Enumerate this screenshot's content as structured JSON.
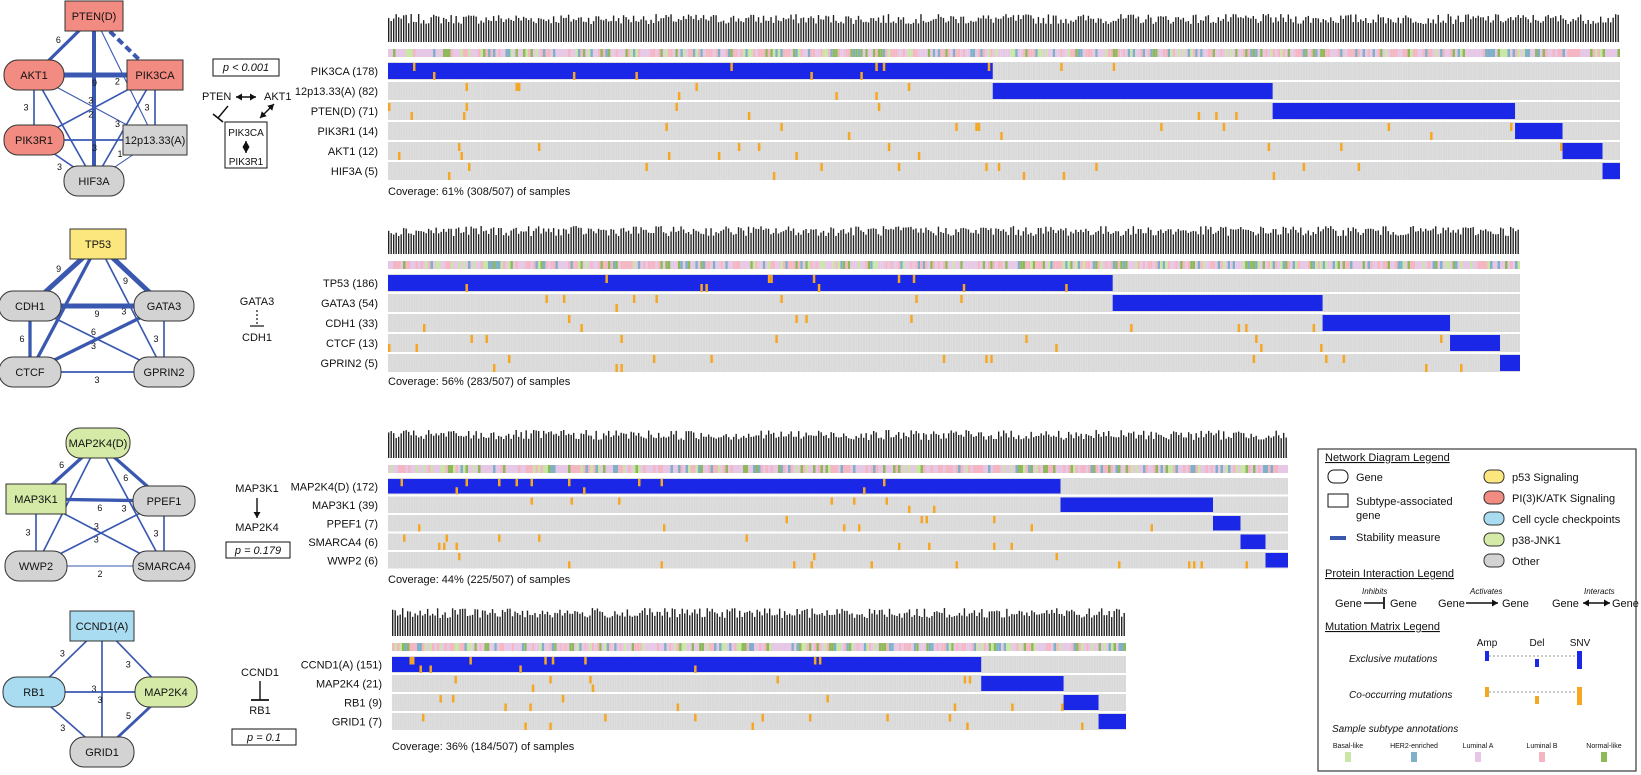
{
  "colors": {
    "blue": "#1b27e6",
    "orange": "#f5a623",
    "grey_cell": "#d9d9d9",
    "edge": "#3a58b0",
    "p53": "#fbe77e",
    "pi3k": "#f28b82",
    "cellcycle": "#a9dcf0",
    "jnk": "#d4eaa6",
    "other": "#d3d3d3",
    "basal": "#c9e6a6",
    "her2": "#7fb0c8",
    "luma": "#e6c8e6",
    "lumb": "#f4b6c2",
    "normal": "#8fb85a"
  },
  "modules": [
    {
      "network": {
        "nodes": [
          {
            "id": "PTEN(D)",
            "label": "PTEN(D)",
            "shape": "rect",
            "color": "pi3k"
          },
          {
            "id": "AKT1",
            "label": "AKT1",
            "shape": "round",
            "color": "pi3k"
          },
          {
            "id": "PIK3CA",
            "label": "PIK3CA",
            "shape": "rect",
            "color": "pi3k"
          },
          {
            "id": "PIK3R1",
            "label": "PIK3R1",
            "shape": "round",
            "color": "pi3k"
          },
          {
            "id": "12p13.33(A)",
            "label": "12p13.33(A)",
            "shape": "rect",
            "color": "other"
          },
          {
            "id": "HIF3A",
            "label": "HIF3A",
            "shape": "round",
            "color": "other"
          }
        ],
        "edges": [
          {
            "a": "PTEN(D)",
            "b": "AKT1",
            "w": "6"
          },
          {
            "a": "PTEN(D)",
            "b": "PIK3CA",
            "w": "",
            "dashed": true
          },
          {
            "a": "PTEN(D)",
            "b": "12p13.33(A)",
            "w": "2"
          },
          {
            "a": "PTEN(D)",
            "b": "HIF3A",
            "w": ""
          },
          {
            "a": "AKT1",
            "b": "PIK3CA",
            "w": "9"
          },
          {
            "a": "AKT1",
            "b": "PIK3R1",
            "w": "3"
          },
          {
            "a": "AKT1",
            "b": "12p13.33(A)",
            "w": "2"
          },
          {
            "a": "AKT1",
            "b": "HIF3A",
            "w": "3"
          },
          {
            "a": "PIK3CA",
            "b": "PIK3R1",
            "w": "3"
          },
          {
            "a": "PIK3CA",
            "b": "12p13.33(A)",
            "w": "3"
          },
          {
            "a": "PIK3CA",
            "b": "HIF3A",
            "w": "3"
          },
          {
            "a": "PIK3R1",
            "b": "12p13.33(A)",
            "w": "3"
          },
          {
            "a": "PIK3R1",
            "b": "HIF3A",
            "w": "3"
          },
          {
            "a": "12p13.33(A)",
            "b": "HIF3A",
            "w": "1"
          }
        ]
      },
      "pvalue": "p < 0.001",
      "interaction": {
        "kind": "m1",
        "labels": [
          "PTEN",
          "AKT1",
          "PIK3CA",
          "PIK3R1"
        ]
      },
      "matrix": {
        "rows": [
          "PIK3CA (178)",
          "12p13.33(A) (82)",
          "PTEN(D) (71)",
          "PIK3R1 (14)",
          "AKT1 (12)",
          "HIF3A (5)"
        ],
        "counts": [
          178,
          82,
          71,
          14,
          12,
          5
        ],
        "coverage": "Coverage: 61% (308/507) of samples"
      }
    },
    {
      "network": {
        "nodes": [
          {
            "id": "TP53",
            "label": "TP53",
            "shape": "rect",
            "color": "p53"
          },
          {
            "id": "CDH1",
            "label": "CDH1",
            "shape": "round",
            "color": "other"
          },
          {
            "id": "GATA3",
            "label": "GATA3",
            "shape": "round",
            "color": "other"
          },
          {
            "id": "CTCF",
            "label": "CTCF",
            "shape": "round",
            "color": "other"
          },
          {
            "id": "GPRIN2",
            "label": "GPRIN2",
            "shape": "round",
            "color": "other"
          }
        ],
        "edges": [
          {
            "a": "TP53",
            "b": "CDH1",
            "w": "9"
          },
          {
            "a": "TP53",
            "b": "GATA3",
            "w": "9"
          },
          {
            "a": "TP53",
            "b": "CTCF",
            "w": "6"
          },
          {
            "a": "TP53",
            "b": "GPRIN2",
            "w": "3"
          },
          {
            "a": "CDH1",
            "b": "GATA3",
            "w": "9"
          },
          {
            "a": "CDH1",
            "b": "CTCF",
            "w": "6"
          },
          {
            "a": "CDH1",
            "b": "GPRIN2",
            "w": "3"
          },
          {
            "a": "GATA3",
            "b": "CTCF",
            "w": "6"
          },
          {
            "a": "GATA3",
            "b": "GPRIN2",
            "w": "3"
          },
          {
            "a": "CTCF",
            "b": "GPRIN2",
            "w": "3"
          }
        ]
      },
      "pvalue": "",
      "interaction": {
        "kind": "m2",
        "labels": [
          "GATA3",
          "CDH1"
        ]
      },
      "matrix": {
        "rows": [
          "TP53 (186)",
          "GATA3 (54)",
          "CDH1 (33)",
          "CTCF (13)",
          "GPRIN2 (5)"
        ],
        "counts": [
          186,
          54,
          33,
          13,
          5
        ],
        "coverage": "Coverage: 56% (283/507) of samples"
      }
    },
    {
      "network": {
        "nodes": [
          {
            "id": "MAP2K4(D)",
            "label": "MAP2K4(D)",
            "shape": "round",
            "color": "jnk"
          },
          {
            "id": "MAP3K1",
            "label": "MAP3K1",
            "shape": "rect",
            "color": "jnk"
          },
          {
            "id": "PPEF1",
            "label": "PPEF1",
            "shape": "round",
            "color": "other"
          },
          {
            "id": "WWP2",
            "label": "WWP2",
            "shape": "round",
            "color": "other"
          },
          {
            "id": "SMARCA4",
            "label": "SMARCA4",
            "shape": "round",
            "color": "other"
          }
        ],
        "edges": [
          {
            "a": "MAP2K4(D)",
            "b": "MAP3K1",
            "w": "6"
          },
          {
            "a": "MAP2K4(D)",
            "b": "PPEF1",
            "w": "6"
          },
          {
            "a": "MAP2K4(D)",
            "b": "WWP2",
            "w": "3"
          },
          {
            "a": "MAP2K4(D)",
            "b": "SMARCA4",
            "w": "3"
          },
          {
            "a": "MAP3K1",
            "b": "PPEF1",
            "w": "6"
          },
          {
            "a": "MAP3K1",
            "b": "WWP2",
            "w": "3"
          },
          {
            "a": "MAP3K1",
            "b": "SMARCA4",
            "w": "3"
          },
          {
            "a": "PPEF1",
            "b": "WWP2",
            "w": "3"
          },
          {
            "a": "PPEF1",
            "b": "SMARCA4",
            "w": "3"
          },
          {
            "a": "WWP2",
            "b": "SMARCA4",
            "w": "2"
          }
        ]
      },
      "pvalue": "p = 0.179",
      "interaction": {
        "kind": "m3",
        "labels": [
          "MAP3K1",
          "MAP2K4"
        ]
      },
      "matrix": {
        "rows": [
          "MAP2K4(D) (172)",
          "MAP3K1 (39)",
          "PPEF1 (7)",
          "SMARCA4 (6)",
          "WWP2 (6)"
        ],
        "counts": [
          172,
          39,
          7,
          6,
          6
        ],
        "coverage": "Coverage: 44%  (225/507) of samples"
      }
    },
    {
      "network": {
        "nodes": [
          {
            "id": "CCND1(A)",
            "label": "CCND1(A)",
            "shape": "rect",
            "color": "cellcycle"
          },
          {
            "id": "RB1",
            "label": "RB1",
            "shape": "round",
            "color": "cellcycle"
          },
          {
            "id": "MAP2K4",
            "label": "MAP2K4",
            "shape": "round",
            "color": "jnk"
          },
          {
            "id": "GRID1",
            "label": "GRID1",
            "shape": "round",
            "color": "other"
          }
        ],
        "edges": [
          {
            "a": "CCND1(A)",
            "b": "RB1",
            "w": "3"
          },
          {
            "a": "CCND1(A)",
            "b": "MAP2K4",
            "w": "3"
          },
          {
            "a": "CCND1(A)",
            "b": "GRID1",
            "w": "3"
          },
          {
            "a": "RB1",
            "b": "MAP2K4",
            "w": "3"
          },
          {
            "a": "RB1",
            "b": "GRID1",
            "w": "3"
          },
          {
            "a": "MAP2K4",
            "b": "GRID1",
            "w": "5"
          }
        ]
      },
      "pvalue": "p = 0.1",
      "interaction": {
        "kind": "m4",
        "labels": [
          "CCND1",
          "RB1"
        ]
      },
      "matrix": {
        "rows": [
          "CCND1(A) (151)",
          "MAP2K4 (21)",
          "RB1 (9)",
          "GRID1 (7)"
        ],
        "counts": [
          151,
          21,
          9,
          7
        ],
        "coverage": "Coverage: 36% (184/507) of samples"
      }
    }
  ],
  "legend": {
    "network_title": "Network Diagram Legend",
    "gene": "Gene",
    "subtype_gene": [
      "Subtype-associated",
      "gene"
    ],
    "stability": "Stability measure",
    "categories": [
      {
        "label": "p53 Signaling",
        "color": "p53"
      },
      {
        "label": "PI(3)K/ATK Signaling",
        "color": "pi3k"
      },
      {
        "label": "Cell cycle checkpoints",
        "color": "cellcycle"
      },
      {
        "label": "p38-JNK1",
        "color": "jnk"
      },
      {
        "label": "Other",
        "color": "other"
      }
    ],
    "protein_title": "Protein Interaction Legend",
    "protein": {
      "gene": "Gene",
      "inhibits": "Inhibits",
      "activates": "Activates",
      "interacts": "Interacts"
    },
    "matrix_title": "Mutation Matrix Legend",
    "matrix_cols": [
      "Amp",
      "Del",
      "SNV"
    ],
    "exclusive": "Exclusive mutations",
    "cooccurring": "Co-occurring mutations",
    "subtype_title": "Sample subtype annotations",
    "subtypes": [
      {
        "label": "Basal-like",
        "color": "basal"
      },
      {
        "label": "HER2-enriched",
        "color": "her2"
      },
      {
        "label": "Luminal A",
        "color": "luma"
      },
      {
        "label": "Luminal B",
        "color": "lumb"
      },
      {
        "label": "Normal-like",
        "color": "normal"
      }
    ]
  }
}
